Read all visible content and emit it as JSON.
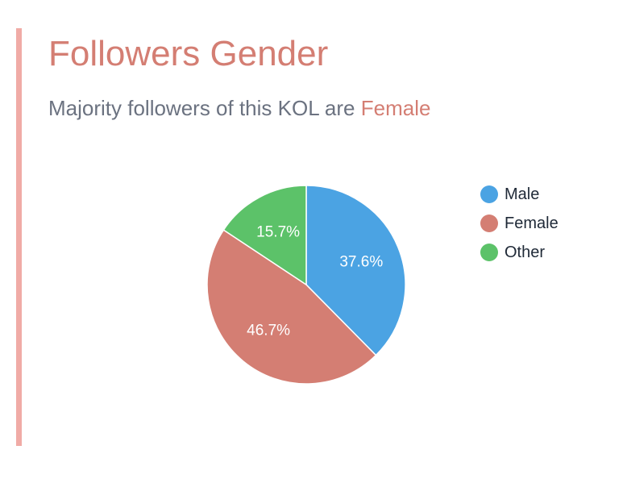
{
  "header": {
    "title": "Followers Gender",
    "subtitle_prefix": "Majority followers of this KOL are ",
    "subtitle_highlight": "Female"
  },
  "colors": {
    "accent": "#d47e73",
    "accent_bar": "#f0aba6",
    "subtitle": "#6b7280"
  },
  "chart_data": {
    "type": "pie",
    "categories": [
      "Male",
      "Female",
      "Other"
    ],
    "values": [
      37.6,
      46.7,
      15.7
    ],
    "labels": [
      "37.6%",
      "46.7%",
      "15.7%"
    ],
    "colors": [
      "#4ba3e3",
      "#d47e73",
      "#5cc269"
    ],
    "title": "",
    "legend_position": "right"
  }
}
